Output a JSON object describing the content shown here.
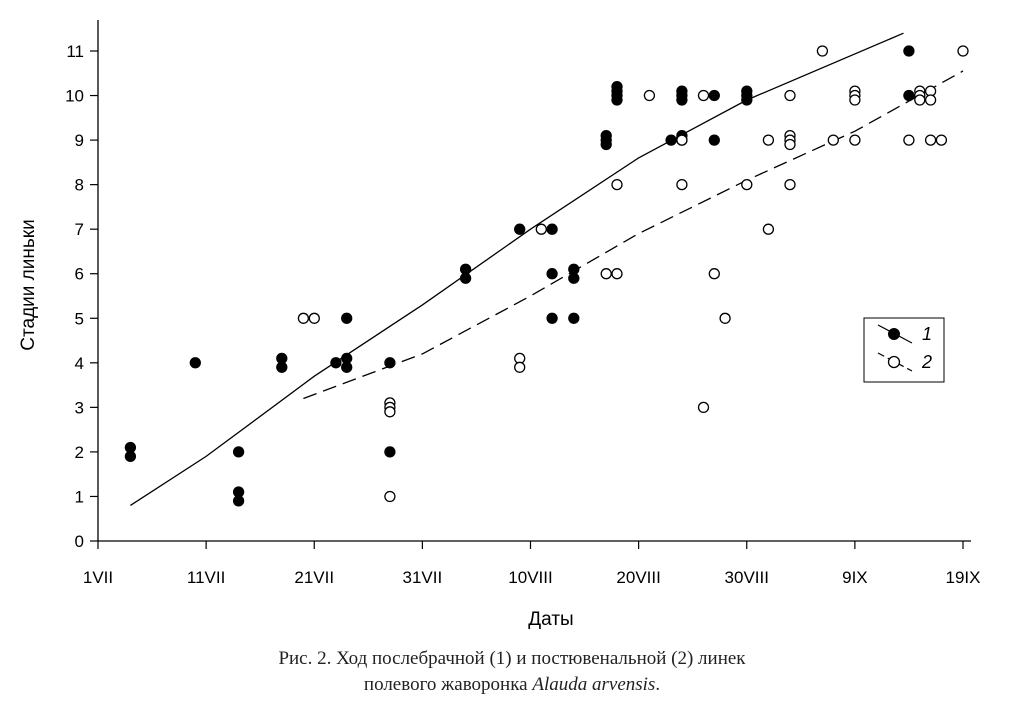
{
  "chart_data": {
    "type": "scatter",
    "xlabel": "Даты",
    "ylabel": "Стадии линьки",
    "xlim": [
      0,
      80
    ],
    "ylim": [
      0,
      11.5
    ],
    "x_ticks": [
      {
        "value": 0,
        "label": "1VII"
      },
      {
        "value": 10,
        "label": "11VII"
      },
      {
        "value": 20,
        "label": "21VII"
      },
      {
        "value": 30,
        "label": "31VII"
      },
      {
        "value": 40,
        "label": "10VIII"
      },
      {
        "value": 50,
        "label": "20VIII"
      },
      {
        "value": 60,
        "label": "30VIII"
      },
      {
        "value": 70,
        "label": "9IX"
      },
      {
        "value": 80,
        "label": "19IX"
      }
    ],
    "y_ticks": [
      0,
      1,
      2,
      3,
      4,
      5,
      6,
      7,
      8,
      9,
      10,
      11
    ],
    "grid": false,
    "legend_position": "right",
    "series": [
      {
        "name": "1",
        "marker": "filled-circle",
        "line_style": "solid",
        "trend": [
          [
            3,
            0.8
          ],
          [
            10,
            1.9
          ],
          [
            20,
            3.7
          ],
          [
            30,
            5.3
          ],
          [
            40,
            7.0
          ],
          [
            50,
            8.6
          ],
          [
            60,
            9.9
          ],
          [
            74.5,
            11.4
          ]
        ],
        "points": [
          [
            3,
            2.1
          ],
          [
            3,
            1.9
          ],
          [
            9,
            4
          ],
          [
            13,
            2
          ],
          [
            13,
            1.1
          ],
          [
            13,
            0.9
          ],
          [
            17,
            4.1
          ],
          [
            17,
            3.9
          ],
          [
            22,
            4
          ],
          [
            23,
            5
          ],
          [
            23,
            4.1
          ],
          [
            23,
            3.9
          ],
          [
            27,
            4
          ],
          [
            27,
            2
          ],
          [
            34,
            6.1
          ],
          [
            34,
            5.9
          ],
          [
            39,
            7
          ],
          [
            42,
            7
          ],
          [
            42,
            6
          ],
          [
            42,
            5
          ],
          [
            44,
            6.1
          ],
          [
            44,
            5.9
          ],
          [
            44,
            5
          ],
          [
            47,
            9.1
          ],
          [
            47,
            9
          ],
          [
            47,
            8.9
          ],
          [
            48,
            10.2
          ],
          [
            48,
            10.1
          ],
          [
            48,
            10
          ],
          [
            48,
            9.9
          ],
          [
            53,
            9
          ],
          [
            54,
            10.1
          ],
          [
            54,
            10
          ],
          [
            54,
            9.9
          ],
          [
            54,
            9.1
          ],
          [
            54,
            9
          ],
          [
            57,
            10
          ],
          [
            57,
            9
          ],
          [
            60,
            10.1
          ],
          [
            60,
            10
          ],
          [
            60,
            9.9
          ],
          [
            75,
            11
          ],
          [
            75,
            10
          ]
        ]
      },
      {
        "name": "2",
        "marker": "open-circle",
        "line_style": "dashed",
        "trend": [
          [
            19,
            3.2
          ],
          [
            30,
            4.2
          ],
          [
            40,
            5.5
          ],
          [
            50,
            6.9
          ],
          [
            60,
            8.1
          ],
          [
            70,
            9.2
          ],
          [
            80,
            10.55
          ]
        ],
        "points": [
          [
            19,
            5
          ],
          [
            20,
            5
          ],
          [
            27,
            3.1
          ],
          [
            27,
            3
          ],
          [
            27,
            2.9
          ],
          [
            27,
            1
          ],
          [
            39,
            4.1
          ],
          [
            39,
            3.9
          ],
          [
            41,
            7
          ],
          [
            47,
            6
          ],
          [
            48,
            8
          ],
          [
            48,
            6
          ],
          [
            51,
            10
          ],
          [
            54,
            9
          ],
          [
            54,
            8
          ],
          [
            56,
            10
          ],
          [
            56,
            3
          ],
          [
            57,
            6
          ],
          [
            58,
            5
          ],
          [
            60,
            8
          ],
          [
            62,
            9
          ],
          [
            62,
            7
          ],
          [
            64,
            10
          ],
          [
            64,
            9.1
          ],
          [
            64,
            9
          ],
          [
            64,
            8.9
          ],
          [
            64,
            8
          ],
          [
            67,
            11
          ],
          [
            68,
            9
          ],
          [
            70,
            10.1
          ],
          [
            70,
            10
          ],
          [
            70,
            9.9
          ],
          [
            70,
            9
          ],
          [
            75,
            9
          ],
          [
            76,
            10.1
          ],
          [
            76,
            10
          ],
          [
            76,
            9.9
          ],
          [
            77,
            10.1
          ],
          [
            77,
            9.9
          ],
          [
            77,
            9
          ],
          [
            78,
            9
          ],
          [
            80,
            11
          ]
        ]
      }
    ]
  },
  "caption": {
    "line1": "Рис. 2. Ход послебрачной (1) и постювенальной (2) линек",
    "line2_prefix": "полевого жаворонка ",
    "line2_species": "Alauda arvensis",
    "line2_suffix": "."
  }
}
